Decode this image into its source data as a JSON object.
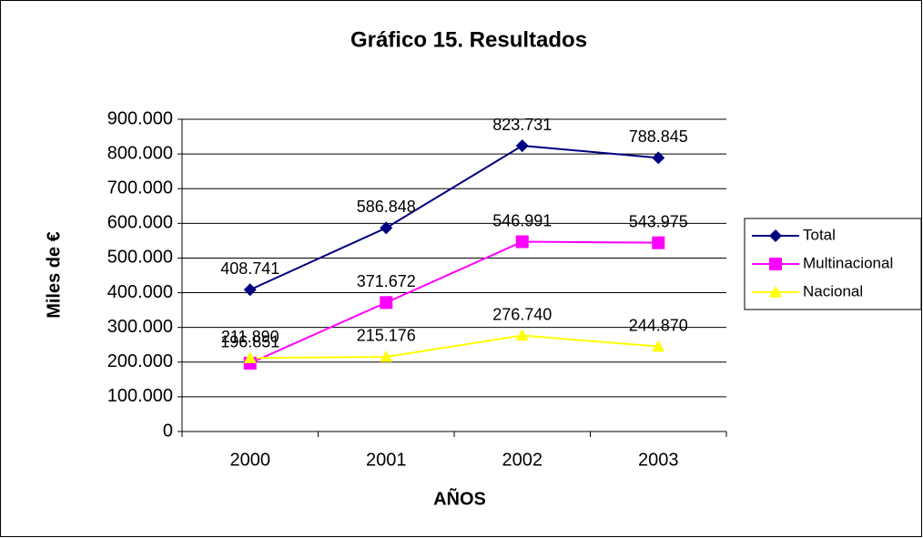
{
  "chart_data": {
    "type": "line",
    "title": "Gráfico 15. Resultados",
    "x_label": "AÑOS",
    "y_label": "Miles de €",
    "categories": [
      "2000",
      "2001",
      "2002",
      "2003"
    ],
    "series": [
      {
        "name": "Total",
        "color": "#000080",
        "marker": "diamond",
        "values": [
          408741,
          586848,
          823731,
          788845
        ],
        "value_labels": [
          "408.741",
          "586.848",
          "823.731",
          "788.845"
        ]
      },
      {
        "name": "Multinacional",
        "color": "#FF00FF",
        "marker": "square",
        "values": [
          196851,
          371672,
          546991,
          543975
        ],
        "value_labels": [
          "196.851",
          "371.672",
          "546.991",
          "543.975"
        ]
      },
      {
        "name": "Nacional",
        "color": "#FFFF00",
        "marker": "triangle",
        "values": [
          211890,
          215176,
          276740,
          244870
        ],
        "value_labels": [
          "211.890",
          "215.176",
          "276.740",
          "244.870"
        ]
      }
    ],
    "ylim": [
      0,
      900000
    ],
    "yticks": [
      0,
      {
        "value": 100000,
        "label": "100.000"
      },
      {
        "value": 200000,
        "label": "200.000"
      },
      {
        "value": 300000,
        "label": "300.000"
      },
      {
        "value": 400000,
        "label": "400.000"
      },
      {
        "value": 500000,
        "label": "500.000"
      },
      {
        "value": 600000,
        "label": "600.000"
      },
      {
        "value": 700000,
        "label": "700.000"
      },
      {
        "value": 800000,
        "label": "800.000"
      },
      {
        "value": 900000,
        "label": "900.000"
      }
    ],
    "grid": true,
    "legend": "right"
  }
}
